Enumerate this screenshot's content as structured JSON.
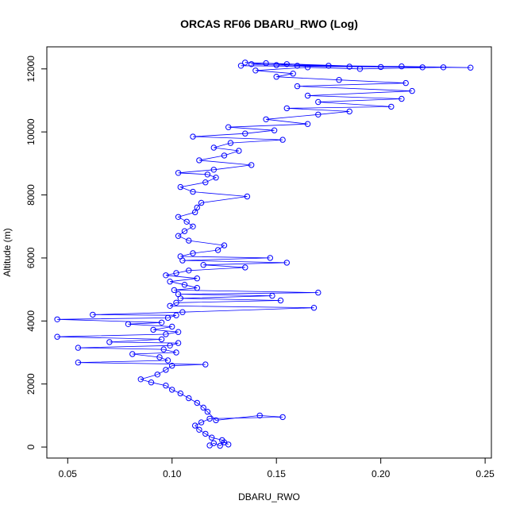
{
  "chart_data": {
    "type": "scatter",
    "title": "ORCAS RF06 DBARU_RWO (Log)",
    "xlabel": "DBARU_RWO",
    "ylabel": "Altitude (m)",
    "xlim": [
      0.04,
      0.253
    ],
    "ylim": [
      -350,
      12700
    ],
    "x_ticks": [
      0.05,
      0.1,
      0.15,
      0.2,
      0.25
    ],
    "x_tick_labels": [
      "0.05",
      "0.10",
      "0.15",
      "0.20",
      "0.25"
    ],
    "y_ticks": [
      0,
      2000,
      4000,
      6000,
      8000,
      10000,
      12000
    ],
    "y_tick_labels": [
      "0",
      "2000",
      "4000",
      "6000",
      "8000",
      "10000",
      "12000"
    ],
    "grid": false,
    "legend": "none",
    "marker": "open-circle",
    "line": true,
    "color": "#0000ff",
    "series": [
      {
        "points": [
          [
            0.118,
            50
          ],
          [
            0.12,
            120
          ],
          [
            0.123,
            40
          ],
          [
            0.125,
            150
          ],
          [
            0.127,
            80
          ],
          [
            0.124,
            220
          ],
          [
            0.119,
            300
          ],
          [
            0.116,
            420
          ],
          [
            0.113,
            550
          ],
          [
            0.111,
            680
          ],
          [
            0.114,
            780
          ],
          [
            0.118,
            900
          ],
          [
            0.153,
            950
          ],
          [
            0.142,
            1000
          ],
          [
            0.121,
            850
          ],
          [
            0.117,
            1120
          ],
          [
            0.115,
            1250
          ],
          [
            0.112,
            1400
          ],
          [
            0.108,
            1550
          ],
          [
            0.104,
            1700
          ],
          [
            0.1,
            1820
          ],
          [
            0.097,
            1950
          ],
          [
            0.09,
            2050
          ],
          [
            0.085,
            2150
          ],
          [
            0.093,
            2300
          ],
          [
            0.097,
            2450
          ],
          [
            0.1,
            2580
          ],
          [
            0.116,
            2620
          ],
          [
            0.055,
            2680
          ],
          [
            0.098,
            2750
          ],
          [
            0.094,
            2850
          ],
          [
            0.081,
            2950
          ],
          [
            0.102,
            3000
          ],
          [
            0.096,
            3100
          ],
          [
            0.055,
            3150
          ],
          [
            0.099,
            3220
          ],
          [
            0.103,
            3300
          ],
          [
            0.07,
            3330
          ],
          [
            0.095,
            3420
          ],
          [
            0.045,
            3500
          ],
          [
            0.097,
            3580
          ],
          [
            0.103,
            3650
          ],
          [
            0.091,
            3720
          ],
          [
            0.1,
            3820
          ],
          [
            0.079,
            3900
          ],
          [
            0.095,
            3950
          ],
          [
            0.045,
            4050
          ],
          [
            0.098,
            4100
          ],
          [
            0.102,
            4180
          ],
          [
            0.062,
            4200
          ],
          [
            0.105,
            4280
          ],
          [
            0.168,
            4420
          ],
          [
            0.099,
            4480
          ],
          [
            0.102,
            4580
          ],
          [
            0.152,
            4650
          ],
          [
            0.104,
            4720
          ],
          [
            0.148,
            4800
          ],
          [
            0.103,
            4850
          ],
          [
            0.17,
            4900
          ],
          [
            0.101,
            4980
          ],
          [
            0.112,
            5050
          ],
          [
            0.106,
            5150
          ],
          [
            0.099,
            5250
          ],
          [
            0.112,
            5350
          ],
          [
            0.097,
            5450
          ],
          [
            0.102,
            5520
          ],
          [
            0.108,
            5600
          ],
          [
            0.135,
            5700
          ],
          [
            0.115,
            5780
          ],
          [
            0.155,
            5850
          ],
          [
            0.105,
            5920
          ],
          [
            0.147,
            6000
          ],
          [
            0.104,
            6050
          ],
          [
            0.11,
            6150
          ],
          [
            0.122,
            6250
          ],
          [
            0.125,
            6400
          ],
          [
            0.108,
            6550
          ],
          [
            0.103,
            6700
          ],
          [
            0.106,
            6850
          ],
          [
            0.11,
            7000
          ],
          [
            0.107,
            7150
          ],
          [
            0.103,
            7300
          ],
          [
            0.111,
            7450
          ],
          [
            0.112,
            7600
          ],
          [
            0.114,
            7750
          ],
          [
            0.136,
            7950
          ],
          [
            0.11,
            8100
          ],
          [
            0.104,
            8250
          ],
          [
            0.116,
            8400
          ],
          [
            0.121,
            8550
          ],
          [
            0.117,
            8650
          ],
          [
            0.103,
            8700
          ],
          [
            0.12,
            8800
          ],
          [
            0.138,
            8950
          ],
          [
            0.113,
            9100
          ],
          [
            0.125,
            9250
          ],
          [
            0.132,
            9400
          ],
          [
            0.12,
            9500
          ],
          [
            0.128,
            9650
          ],
          [
            0.153,
            9750
          ],
          [
            0.11,
            9850
          ],
          [
            0.135,
            9950
          ],
          [
            0.149,
            10050
          ],
          [
            0.127,
            10150
          ],
          [
            0.165,
            10250
          ],
          [
            0.145,
            10400
          ],
          [
            0.17,
            10550
          ],
          [
            0.185,
            10650
          ],
          [
            0.155,
            10750
          ],
          [
            0.205,
            10800
          ],
          [
            0.17,
            10950
          ],
          [
            0.21,
            11050
          ],
          [
            0.165,
            11150
          ],
          [
            0.215,
            11300
          ],
          [
            0.16,
            11450
          ],
          [
            0.212,
            11550
          ],
          [
            0.18,
            11650
          ],
          [
            0.15,
            11750
          ],
          [
            0.158,
            11850
          ],
          [
            0.14,
            11950
          ],
          [
            0.165,
            12050
          ],
          [
            0.19,
            12000
          ],
          [
            0.23,
            12050
          ],
          [
            0.243,
            12040
          ],
          [
            0.21,
            12080
          ],
          [
            0.175,
            12100
          ],
          [
            0.15,
            12120
          ],
          [
            0.138,
            12150
          ],
          [
            0.145,
            12180
          ],
          [
            0.16,
            12100
          ],
          [
            0.2,
            12060
          ],
          [
            0.135,
            12200
          ],
          [
            0.155,
            12150
          ],
          [
            0.185,
            12070
          ],
          [
            0.22,
            12050
          ],
          [
            0.133,
            12100
          ]
        ]
      }
    ]
  }
}
